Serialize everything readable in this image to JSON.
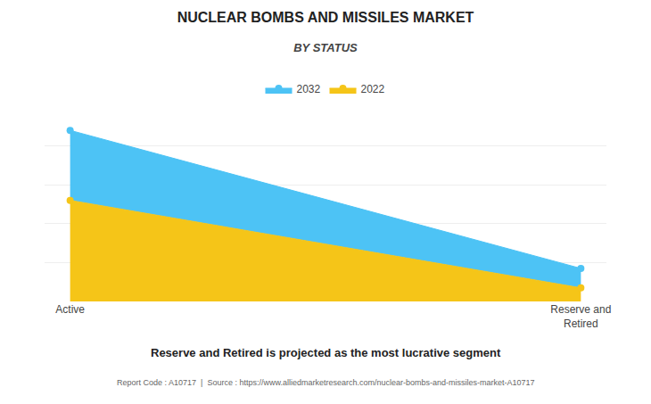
{
  "chart_data": {
    "type": "area",
    "title": "NUCLEAR BOMBS AND MISSILES MARKET",
    "subtitle": "BY STATUS",
    "categories": [
      "Active",
      "Reserve and\nRetired"
    ],
    "series": [
      {
        "name": "2022",
        "color": "#F5C518",
        "values": [
          0.52,
          0.07
        ]
      },
      {
        "name": "2032",
        "color": "#4DC3F5",
        "values": [
          0.88,
          0.17
        ]
      }
    ],
    "ylim": [
      0,
      1.0
    ],
    "yticks": [
      0,
      0.2,
      0.4,
      0.6,
      0.8,
      1
    ],
    "grid": true,
    "tick_labels": "x",
    "legend": "top",
    "stacked": false,
    "marker": "circle",
    "annotations": [
      "Reserve and Retired is projected as the most lucrative segment",
      "Report Code : A10717  |  Source : https://www.alliedmarketresearch.com/nuclear-bombs-and-missiles-market-A10717"
    ]
  }
}
